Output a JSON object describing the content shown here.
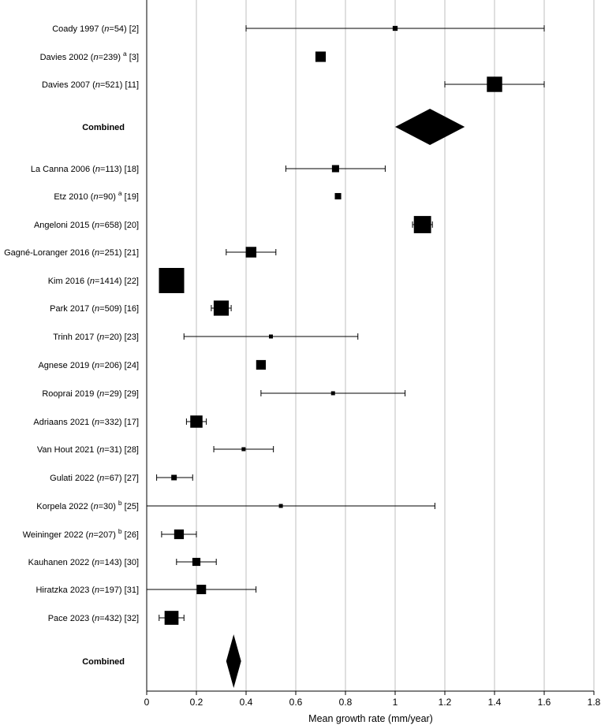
{
  "chart_data": {
    "type": "forest",
    "xlabel": "Mean growth rate (mm/year)",
    "xlim": [
      0,
      1.8
    ],
    "xticks": [
      0,
      0.2,
      0.4,
      0.6,
      0.8,
      1,
      1.2,
      1.4,
      1.6,
      1.8
    ],
    "xtick_labels": [
      "0",
      "0.2",
      "0.4",
      "0.6",
      "0.8",
      "1",
      "1.2",
      "1.4",
      "1.6",
      "1.8"
    ],
    "gridlines": "vertical",
    "colors": {
      "marker": "#000000",
      "grid": "#bfbfbf",
      "axis": "#000000"
    },
    "rows": [
      {
        "kind": "study",
        "pre": "Coady 1997 (",
        "n_label": "n",
        "post": "=54) [2]",
        "sup": "",
        "ref": "",
        "mean": 1.0,
        "lower": 0.4,
        "upper": 1.6,
        "n": 54
      },
      {
        "kind": "study",
        "pre": "Davies 2002 (",
        "n_label": "n",
        "post": "=239)",
        "sup": "a",
        "ref": "[3]",
        "mean": 0.7,
        "lower": null,
        "upper": null,
        "n": 239
      },
      {
        "kind": "study",
        "pre": "Davies 2007 (",
        "n_label": "n",
        "post": "=521) [11]",
        "sup": "",
        "ref": "",
        "mean": 1.4,
        "lower": 1.2,
        "upper": 1.6,
        "n": 521
      },
      {
        "kind": "combined",
        "label": "Combined",
        "mean": 1.14,
        "lower": 1.0,
        "upper": 1.28
      },
      {
        "kind": "study",
        "pre": "La Canna 2006 (",
        "n_label": "n",
        "post": "=113) [18]",
        "sup": "",
        "ref": "",
        "mean": 0.76,
        "lower": 0.56,
        "upper": 0.96,
        "n": 113
      },
      {
        "kind": "study",
        "pre": "Etz 2010 (",
        "n_label": "n",
        "post": "=90)",
        "sup": "a",
        "ref": "[19]",
        "mean": 0.77,
        "lower": null,
        "upper": null,
        "n": 90
      },
      {
        "kind": "study",
        "pre": "Angeloni 2015 (",
        "n_label": "n",
        "post": "=658) [20]",
        "sup": "",
        "ref": "",
        "mean": 1.11,
        "lower": 1.07,
        "upper": 1.15,
        "n": 658
      },
      {
        "kind": "study",
        "pre": "Gagné-Loranger 2016 (",
        "n_label": "n",
        "post": "=251) [21]",
        "sup": "",
        "ref": "",
        "mean": 0.42,
        "lower": 0.32,
        "upper": 0.52,
        "n": 251
      },
      {
        "kind": "study",
        "pre": "Kim 2016 (",
        "n_label": "n",
        "post": "=1414) [22]",
        "sup": "",
        "ref": "",
        "mean": 0.1,
        "lower": null,
        "upper": null,
        "n": 1414
      },
      {
        "kind": "study",
        "pre": "Park 2017 (",
        "n_label": "n",
        "post": "=509) [16]",
        "sup": "",
        "ref": "",
        "mean": 0.3,
        "lower": 0.26,
        "upper": 0.34,
        "n": 509
      },
      {
        "kind": "study",
        "pre": "Trinh 2017 (",
        "n_label": "n",
        "post": "=20) [23]",
        "sup": "",
        "ref": "",
        "mean": 0.5,
        "lower": 0.15,
        "upper": 0.85,
        "n": 20
      },
      {
        "kind": "study",
        "pre": "Agnese 2019 (",
        "n_label": "n",
        "post": "=206) [24]",
        "sup": "",
        "ref": "",
        "mean": 0.46,
        "lower": null,
        "upper": null,
        "n": 206
      },
      {
        "kind": "study",
        "pre": "Rooprai 2019 (",
        "n_label": "n",
        "post": "=29) [29]",
        "sup": "",
        "ref": "",
        "mean": 0.75,
        "lower": 0.46,
        "upper": 1.04,
        "n": 29
      },
      {
        "kind": "study",
        "pre": "Adriaans 2021 (",
        "n_label": "n",
        "post": "=332) [17]",
        "sup": "",
        "ref": "",
        "mean": 0.2,
        "lower": 0.16,
        "upper": 0.24,
        "n": 332
      },
      {
        "kind": "study",
        "pre": "Van Hout 2021 (",
        "n_label": "n",
        "post": "=31) [28]",
        "sup": "",
        "ref": "",
        "mean": 0.39,
        "lower": 0.27,
        "upper": 0.51,
        "n": 31
      },
      {
        "kind": "study",
        "pre": "Gulati 2022 (",
        "n_label": "n",
        "post": "=67) [27]",
        "sup": "",
        "ref": "",
        "mean": 0.11,
        "lower": 0.04,
        "upper": 0.185,
        "n": 67
      },
      {
        "kind": "study",
        "pre": "Korpela 2022 (",
        "n_label": "n",
        "post": "=30)",
        "sup": "b",
        "ref": "[25]",
        "mean": 0.54,
        "lower": 0.0,
        "upper": 1.16,
        "n": 30
      },
      {
        "kind": "study",
        "pre": "Weininger 2022 (",
        "n_label": "n",
        "post": "=207)",
        "sup": "b",
        "ref": "[26]",
        "mean": 0.13,
        "lower": 0.06,
        "upper": 0.2,
        "n": 207
      },
      {
        "kind": "study",
        "pre": "Kauhanen 2022 (",
        "n_label": "n",
        "post": "=143) [30]",
        "sup": "",
        "ref": "",
        "mean": 0.2,
        "lower": 0.12,
        "upper": 0.28,
        "n": 143
      },
      {
        "kind": "study",
        "pre": "Hiratzka 2023 (",
        "n_label": "n",
        "post": "=197) [31]",
        "sup": "",
        "ref": "",
        "mean": 0.22,
        "lower": 0.0,
        "upper": 0.44,
        "n": 197
      },
      {
        "kind": "study",
        "pre": "Pace 2023 (",
        "n_label": "n",
        "post": "=432) [32]",
        "sup": "",
        "ref": "",
        "mean": 0.1,
        "lower": 0.05,
        "upper": 0.15,
        "n": 432
      },
      {
        "kind": "combined",
        "label": "Combined",
        "mean": 0.35,
        "lower": 0.32,
        "upper": 0.38
      }
    ]
  }
}
